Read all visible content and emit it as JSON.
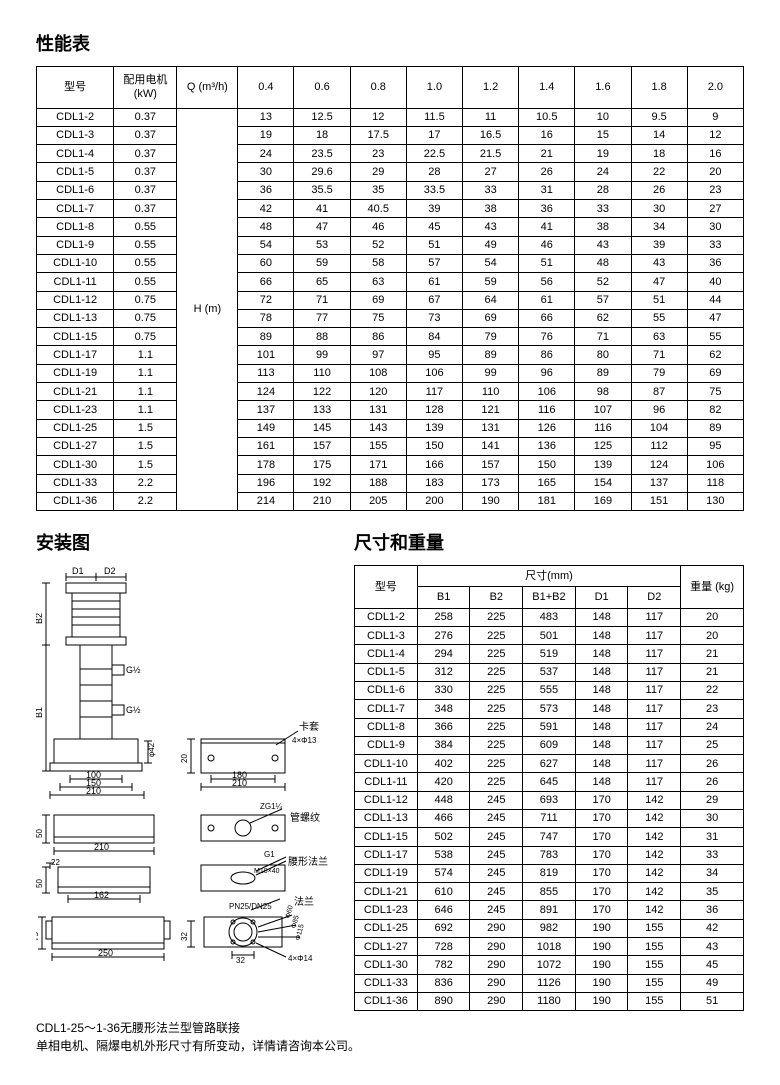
{
  "headings": {
    "perf": "性能表",
    "install": "安装图",
    "dim": "尺寸和重量"
  },
  "perf_table": {
    "headers": {
      "model": "型号",
      "motor": "配用电机 (kW)",
      "q": "Q (m³/h)",
      "flow_values": [
        "0.4",
        "0.6",
        "0.8",
        "1.0",
        "1.2",
        "1.4",
        "1.6",
        "1.8",
        "2.0"
      ],
      "h_label": "H (m)"
    },
    "rows": [
      {
        "m": "CDL1-2",
        "kw": "0.37",
        "v": [
          "13",
          "12.5",
          "12",
          "11.5",
          "11",
          "10.5",
          "10",
          "9.5",
          "9"
        ]
      },
      {
        "m": "CDL1-3",
        "kw": "0.37",
        "v": [
          "19",
          "18",
          "17.5",
          "17",
          "16.5",
          "16",
          "15",
          "14",
          "12"
        ]
      },
      {
        "m": "CDL1-4",
        "kw": "0.37",
        "v": [
          "24",
          "23.5",
          "23",
          "22.5",
          "21.5",
          "21",
          "19",
          "18",
          "16"
        ]
      },
      {
        "m": "CDL1-5",
        "kw": "0.37",
        "v": [
          "30",
          "29.6",
          "29",
          "28",
          "27",
          "26",
          "24",
          "22",
          "20"
        ]
      },
      {
        "m": "CDL1-6",
        "kw": "0.37",
        "v": [
          "36",
          "35.5",
          "35",
          "33.5",
          "33",
          "31",
          "28",
          "26",
          "23"
        ]
      },
      {
        "m": "CDL1-7",
        "kw": "0.37",
        "v": [
          "42",
          "41",
          "40.5",
          "39",
          "38",
          "36",
          "33",
          "30",
          "27"
        ]
      },
      {
        "m": "CDL1-8",
        "kw": "0.55",
        "v": [
          "48",
          "47",
          "46",
          "45",
          "43",
          "41",
          "38",
          "34",
          "30"
        ]
      },
      {
        "m": "CDL1-9",
        "kw": "0.55",
        "v": [
          "54",
          "53",
          "52",
          "51",
          "49",
          "46",
          "43",
          "39",
          "33"
        ]
      },
      {
        "m": "CDL1-10",
        "kw": "0.55",
        "v": [
          "60",
          "59",
          "58",
          "57",
          "54",
          "51",
          "48",
          "43",
          "36"
        ]
      },
      {
        "m": "CDL1-11",
        "kw": "0.55",
        "v": [
          "66",
          "65",
          "63",
          "61",
          "59",
          "56",
          "52",
          "47",
          "40"
        ]
      },
      {
        "m": "CDL1-12",
        "kw": "0.75",
        "v": [
          "72",
          "71",
          "69",
          "67",
          "64",
          "61",
          "57",
          "51",
          "44"
        ]
      },
      {
        "m": "CDL1-13",
        "kw": "0.75",
        "v": [
          "78",
          "77",
          "75",
          "73",
          "69",
          "66",
          "62",
          "55",
          "47"
        ]
      },
      {
        "m": "CDL1-15",
        "kw": "0.75",
        "v": [
          "89",
          "88",
          "86",
          "84",
          "79",
          "76",
          "71",
          "63",
          "55"
        ]
      },
      {
        "m": "CDL1-17",
        "kw": "1.1",
        "v": [
          "101",
          "99",
          "97",
          "95",
          "89",
          "86",
          "80",
          "71",
          "62"
        ]
      },
      {
        "m": "CDL1-19",
        "kw": "1.1",
        "v": [
          "113",
          "110",
          "108",
          "106",
          "99",
          "96",
          "89",
          "79",
          "69"
        ]
      },
      {
        "m": "CDL1-21",
        "kw": "1.1",
        "v": [
          "124",
          "122",
          "120",
          "117",
          "110",
          "106",
          "98",
          "87",
          "75"
        ]
      },
      {
        "m": "CDL1-23",
        "kw": "1.1",
        "v": [
          "137",
          "133",
          "131",
          "128",
          "121",
          "116",
          "107",
          "96",
          "82"
        ]
      },
      {
        "m": "CDL1-25",
        "kw": "1.5",
        "v": [
          "149",
          "145",
          "143",
          "139",
          "131",
          "126",
          "116",
          "104",
          "89"
        ]
      },
      {
        "m": "CDL1-27",
        "kw": "1.5",
        "v": [
          "161",
          "157",
          "155",
          "150",
          "141",
          "136",
          "125",
          "112",
          "95"
        ]
      },
      {
        "m": "CDL1-30",
        "kw": "1.5",
        "v": [
          "178",
          "175",
          "171",
          "166",
          "157",
          "150",
          "139",
          "124",
          "106"
        ]
      },
      {
        "m": "CDL1-33",
        "kw": "2.2",
        "v": [
          "196",
          "192",
          "188",
          "183",
          "173",
          "165",
          "154",
          "137",
          "118"
        ]
      },
      {
        "m": "CDL1-36",
        "kw": "2.2",
        "v": [
          "214",
          "210",
          "205",
          "200",
          "190",
          "181",
          "169",
          "151",
          "130"
        ]
      }
    ]
  },
  "dim_table": {
    "headers": {
      "model": "型号",
      "size": "尺寸(mm)",
      "cols": [
        "B1",
        "B2",
        "B1+B2",
        "D1",
        "D2"
      ],
      "weight": "重量 (kg)"
    },
    "rows": [
      {
        "m": "CDL1-2",
        "v": [
          "258",
          "225",
          "483",
          "148",
          "117"
        ],
        "w": "20"
      },
      {
        "m": "CDL1-3",
        "v": [
          "276",
          "225",
          "501",
          "148",
          "117"
        ],
        "w": "20"
      },
      {
        "m": "CDL1-4",
        "v": [
          "294",
          "225",
          "519",
          "148",
          "117"
        ],
        "w": "21"
      },
      {
        "m": "CDL1-5",
        "v": [
          "312",
          "225",
          "537",
          "148",
          "117"
        ],
        "w": "21"
      },
      {
        "m": "CDL1-6",
        "v": [
          "330",
          "225",
          "555",
          "148",
          "117"
        ],
        "w": "22"
      },
      {
        "m": "CDL1-7",
        "v": [
          "348",
          "225",
          "573",
          "148",
          "117"
        ],
        "w": "23"
      },
      {
        "m": "CDL1-8",
        "v": [
          "366",
          "225",
          "591",
          "148",
          "117"
        ],
        "w": "24"
      },
      {
        "m": "CDL1-9",
        "v": [
          "384",
          "225",
          "609",
          "148",
          "117"
        ],
        "w": "25"
      },
      {
        "m": "CDL1-10",
        "v": [
          "402",
          "225",
          "627",
          "148",
          "117"
        ],
        "w": "26"
      },
      {
        "m": "CDL1-11",
        "v": [
          "420",
          "225",
          "645",
          "148",
          "117"
        ],
        "w": "26"
      },
      {
        "m": "CDL1-12",
        "v": [
          "448",
          "245",
          "693",
          "170",
          "142"
        ],
        "w": "29"
      },
      {
        "m": "CDL1-13",
        "v": [
          "466",
          "245",
          "711",
          "170",
          "142"
        ],
        "w": "30"
      },
      {
        "m": "CDL1-15",
        "v": [
          "502",
          "245",
          "747",
          "170",
          "142"
        ],
        "w": "31"
      },
      {
        "m": "CDL1-17",
        "v": [
          "538",
          "245",
          "783",
          "170",
          "142"
        ],
        "w": "33"
      },
      {
        "m": "CDL1-19",
        "v": [
          "574",
          "245",
          "819",
          "170",
          "142"
        ],
        "w": "34"
      },
      {
        "m": "CDL1-21",
        "v": [
          "610",
          "245",
          "855",
          "170",
          "142"
        ],
        "w": "35"
      },
      {
        "m": "CDL1-23",
        "v": [
          "646",
          "245",
          "891",
          "170",
          "142"
        ],
        "w": "36"
      },
      {
        "m": "CDL1-25",
        "v": [
          "692",
          "290",
          "982",
          "190",
          "155"
        ],
        "w": "42"
      },
      {
        "m": "CDL1-27",
        "v": [
          "728",
          "290",
          "1018",
          "190",
          "155"
        ],
        "w": "43"
      },
      {
        "m": "CDL1-30",
        "v": [
          "782",
          "290",
          "1072",
          "190",
          "155"
        ],
        "w": "45"
      },
      {
        "m": "CDL1-33",
        "v": [
          "836",
          "290",
          "1126",
          "190",
          "155"
        ],
        "w": "49"
      },
      {
        "m": "CDL1-36",
        "v": [
          "890",
          "290",
          "1180",
          "190",
          "155"
        ],
        "w": "51"
      }
    ]
  },
  "diagram_labels": {
    "d1": "D1",
    "d2": "D2",
    "b1": "B1",
    "b2": "B2",
    "g12a": "G½",
    "g12b": "G½",
    "kajia": "卡套",
    "guanluowen": "管螺纹",
    "yaofalan": "腰形法兰",
    "falan": "法兰",
    "zg": "ZG1¼",
    "g1": "G1",
    "m10": "M10×40",
    "pn25": "PN25/DN25",
    "phi42": "φ42",
    "hole13": "4×Φ13",
    "hole14": "4×Φ14",
    "dim100": "100",
    "dim150": "150",
    "dim210a": "210",
    "dim180": "180",
    "dim210b": "210",
    "dim210c": "210",
    "dim50a": "50",
    "dim50b": "50",
    "dim22": "22",
    "dim162": "162",
    "dim75": "75",
    "dim250": "250",
    "dim20": "20",
    "dim32a": "32",
    "dim32b": "32",
    "phi60": "Φ60",
    "phi85": "Φ85",
    "phi115": "Φ115"
  },
  "footnote": {
    "line1": "CDL1-25～1-36无腰形法兰型管路联接",
    "line2": "单相电机、隔爆电机外形尺寸有所变动，详情请咨询本公司。"
  },
  "style": {
    "text_color": "#000000",
    "border_color": "#000000",
    "bg_color": "#ffffff",
    "header_font_size": 18,
    "cell_font_size": 11
  }
}
